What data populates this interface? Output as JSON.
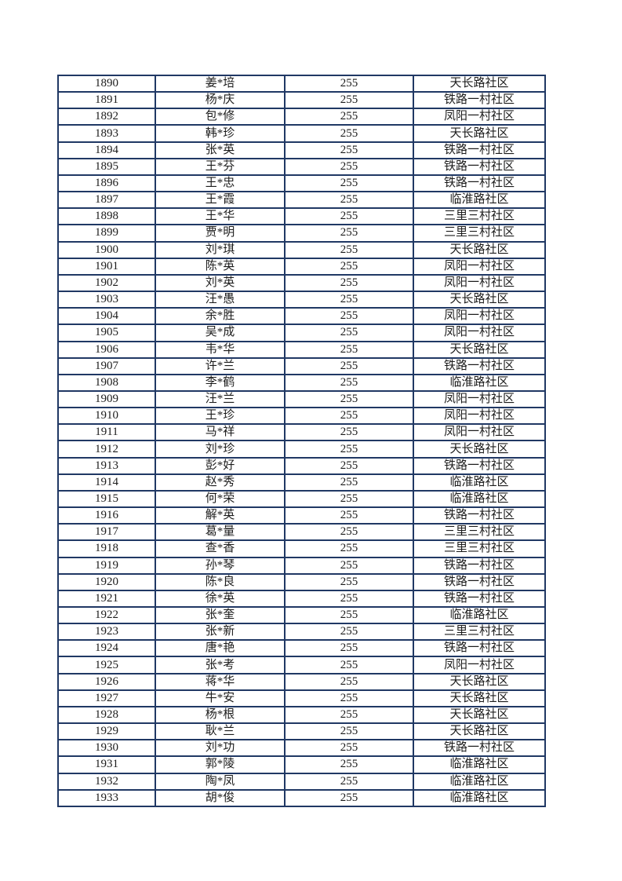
{
  "colors": {
    "page_background": "#ffffff",
    "table_border": "#203864",
    "cell_text": "#1c1c1c"
  },
  "table": {
    "columns": [
      "serial",
      "name",
      "value",
      "community"
    ],
    "rows": [
      {
        "serial": "1890",
        "name": "姜*培",
        "value": "255",
        "community": "天长路社区"
      },
      {
        "serial": "1891",
        "name": "杨*庆",
        "value": "255",
        "community": "铁路一村社区"
      },
      {
        "serial": "1892",
        "name": "包*修",
        "value": "255",
        "community": "凤阳一村社区"
      },
      {
        "serial": "1893",
        "name": "韩*珍",
        "value": "255",
        "community": "天长路社区"
      },
      {
        "serial": "1894",
        "name": "张*英",
        "value": "255",
        "community": "铁路一村社区"
      },
      {
        "serial": "1895",
        "name": "王*芬",
        "value": "255",
        "community": "铁路一村社区"
      },
      {
        "serial": "1896",
        "name": "王*忠",
        "value": "255",
        "community": "铁路一村社区"
      },
      {
        "serial": "1897",
        "name": "王*霞",
        "value": "255",
        "community": "临淮路社区"
      },
      {
        "serial": "1898",
        "name": "王*华",
        "value": "255",
        "community": "三里三村社区"
      },
      {
        "serial": "1899",
        "name": "贾*明",
        "value": "255",
        "community": "三里三村社区"
      },
      {
        "serial": "1900",
        "name": "刘*琪",
        "value": "255",
        "community": "天长路社区"
      },
      {
        "serial": "1901",
        "name": "陈*英",
        "value": "255",
        "community": "凤阳一村社区"
      },
      {
        "serial": "1902",
        "name": "刘*英",
        "value": "255",
        "community": "凤阳一村社区"
      },
      {
        "serial": "1903",
        "name": "汪*愚",
        "value": "255",
        "community": "天长路社区"
      },
      {
        "serial": "1904",
        "name": "余*胜",
        "value": "255",
        "community": "凤阳一村社区"
      },
      {
        "serial": "1905",
        "name": "吴*成",
        "value": "255",
        "community": "凤阳一村社区"
      },
      {
        "serial": "1906",
        "name": "韦*华",
        "value": "255",
        "community": "天长路社区"
      },
      {
        "serial": "1907",
        "name": "许*兰",
        "value": "255",
        "community": "铁路一村社区"
      },
      {
        "serial": "1908",
        "name": "李*鹤",
        "value": "255",
        "community": "临淮路社区"
      },
      {
        "serial": "1909",
        "name": "汪*兰",
        "value": "255",
        "community": "凤阳一村社区"
      },
      {
        "serial": "1910",
        "name": "王*珍",
        "value": "255",
        "community": "凤阳一村社区"
      },
      {
        "serial": "1911",
        "name": "马*祥",
        "value": "255",
        "community": "凤阳一村社区"
      },
      {
        "serial": "1912",
        "name": "刘*珍",
        "value": "255",
        "community": "天长路社区"
      },
      {
        "serial": "1913",
        "name": "彭*好",
        "value": "255",
        "community": "铁路一村社区"
      },
      {
        "serial": "1914",
        "name": "赵*秀",
        "value": "255",
        "community": "临淮路社区"
      },
      {
        "serial": "1915",
        "name": "何*荣",
        "value": "255",
        "community": "临淮路社区"
      },
      {
        "serial": "1916",
        "name": "解*英",
        "value": "255",
        "community": "铁路一村社区"
      },
      {
        "serial": "1917",
        "name": "葛*量",
        "value": "255",
        "community": "三里三村社区"
      },
      {
        "serial": "1918",
        "name": "查*香",
        "value": "255",
        "community": "三里三村社区"
      },
      {
        "serial": "1919",
        "name": "孙*琴",
        "value": "255",
        "community": "铁路一村社区"
      },
      {
        "serial": "1920",
        "name": "陈*良",
        "value": "255",
        "community": "铁路一村社区"
      },
      {
        "serial": "1921",
        "name": "徐*英",
        "value": "255",
        "community": "铁路一村社区"
      },
      {
        "serial": "1922",
        "name": "张*奎",
        "value": "255",
        "community": "临淮路社区"
      },
      {
        "serial": "1923",
        "name": "张*新",
        "value": "255",
        "community": "三里三村社区"
      },
      {
        "serial": "1924",
        "name": "唐*艳",
        "value": "255",
        "community": "铁路一村社区"
      },
      {
        "serial": "1925",
        "name": "张*考",
        "value": "255",
        "community": "凤阳一村社区"
      },
      {
        "serial": "1926",
        "name": "蒋*华",
        "value": "255",
        "community": "天长路社区"
      },
      {
        "serial": "1927",
        "name": "牛*安",
        "value": "255",
        "community": "天长路社区"
      },
      {
        "serial": "1928",
        "name": "杨*根",
        "value": "255",
        "community": "天长路社区"
      },
      {
        "serial": "1929",
        "name": "耿*兰",
        "value": "255",
        "community": "天长路社区"
      },
      {
        "serial": "1930",
        "name": "刘*功",
        "value": "255",
        "community": "铁路一村社区"
      },
      {
        "serial": "1931",
        "name": "郭*陵",
        "value": "255",
        "community": "临淮路社区"
      },
      {
        "serial": "1932",
        "name": "陶*凤",
        "value": "255",
        "community": "临淮路社区"
      },
      {
        "serial": "1933",
        "name": "胡*俊",
        "value": "255",
        "community": "临淮路社区"
      }
    ]
  }
}
